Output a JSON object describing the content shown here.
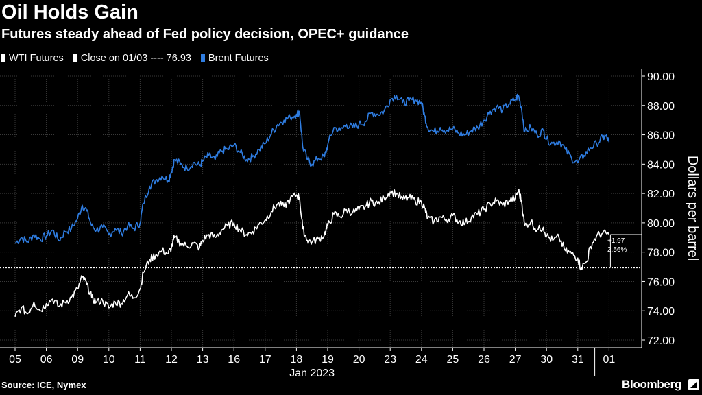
{
  "header": {
    "title": "Oil Holds Gain",
    "subtitle": "Futures steady ahead of Fed policy decision, OPEC+ guidance"
  },
  "legend": {
    "wti": "WTI Futures",
    "close": "Close on 01/03 ---- 76.93",
    "brent": "Brent Futures"
  },
  "footer": {
    "source": "Source: ICE, Nymex",
    "brand": "Bloomberg"
  },
  "colors": {
    "background": "#000000",
    "wti": "#ffffff",
    "brent": "#2f7de1",
    "grid": "#3a3a3a"
  },
  "chart_data": {
    "type": "line",
    "ylabel": "Dollars per barrel",
    "xlabel": "Jan 2023",
    "ylim": [
      72,
      90
    ],
    "y_ticks": [
      "72.00",
      "74.00",
      "76.00",
      "78.00",
      "80.00",
      "82.00",
      "84.00",
      "86.00",
      "88.00",
      "90.00"
    ],
    "categories": [
      "05",
      "06",
      "09",
      "10",
      "11",
      "12",
      "13",
      "16",
      "17",
      "18",
      "19",
      "20",
      "23",
      "24",
      "25",
      "26",
      "27",
      "30",
      "31",
      "01"
    ],
    "grid": true,
    "legend_position": "top-left",
    "reference_line": {
      "label": "Close on 01/03",
      "value": 76.93
    },
    "annotation": {
      "change": "+1.97",
      "percent": "2.56%"
    },
    "series": [
      {
        "name": "Brent Futures",
        "color": "#2f7de1",
        "values": [
          [
            0,
            78.6
          ],
          [
            0.2,
            79.0
          ],
          [
            0.4,
            78.7
          ],
          [
            0.6,
            79.2
          ],
          [
            0.8,
            78.9
          ],
          [
            1.0,
            79.1
          ],
          [
            1.2,
            79.5
          ],
          [
            1.4,
            78.8
          ],
          [
            1.6,
            79.4
          ],
          [
            1.8,
            79.6
          ],
          [
            2.0,
            80.3
          ],
          [
            2.15,
            81.2
          ],
          [
            2.3,
            80.8
          ],
          [
            2.45,
            79.8
          ],
          [
            2.6,
            79.5
          ],
          [
            2.8,
            79.7
          ],
          [
            3.0,
            79.2
          ],
          [
            3.2,
            79.6
          ],
          [
            3.4,
            79.3
          ],
          [
            3.6,
            79.8
          ],
          [
            3.8,
            79.6
          ],
          [
            4.0,
            80.0
          ],
          [
            4.1,
            81.3
          ],
          [
            4.3,
            82.5
          ],
          [
            4.5,
            82.9
          ],
          [
            4.7,
            83.2
          ],
          [
            4.9,
            82.9
          ],
          [
            5.0,
            83.5
          ],
          [
            5.1,
            84.3
          ],
          [
            5.3,
            84.0
          ],
          [
            5.5,
            83.7
          ],
          [
            5.7,
            84.1
          ],
          [
            5.9,
            83.9
          ],
          [
            6.0,
            84.2
          ],
          [
            6.2,
            84.6
          ],
          [
            6.4,
            84.3
          ],
          [
            6.6,
            84.9
          ],
          [
            6.8,
            85.0
          ],
          [
            7.0,
            85.3
          ],
          [
            7.2,
            84.8
          ],
          [
            7.4,
            84.3
          ],
          [
            7.6,
            84.5
          ],
          [
            7.8,
            85.0
          ],
          [
            8.0,
            85.4
          ],
          [
            8.2,
            86.1
          ],
          [
            8.4,
            86.7
          ],
          [
            8.6,
            87.0
          ],
          [
            8.8,
            87.2
          ],
          [
            9.0,
            87.4
          ],
          [
            9.1,
            87.6
          ],
          [
            9.2,
            85.2
          ],
          [
            9.35,
            84.3
          ],
          [
            9.5,
            84.0
          ],
          [
            9.7,
            84.4
          ],
          [
            9.9,
            84.5
          ],
          [
            10.0,
            85.3
          ],
          [
            10.2,
            86.5
          ],
          [
            10.4,
            86.3
          ],
          [
            10.6,
            86.7
          ],
          [
            10.8,
            86.5
          ],
          [
            11.0,
            86.7
          ],
          [
            11.2,
            86.9
          ],
          [
            11.4,
            87.5
          ],
          [
            11.6,
            87.4
          ],
          [
            11.8,
            87.6
          ],
          [
            12.0,
            88.4
          ],
          [
            12.2,
            88.7
          ],
          [
            12.4,
            88.2
          ],
          [
            12.6,
            88.3
          ],
          [
            12.8,
            88.4
          ],
          [
            13.0,
            88.2
          ],
          [
            13.1,
            87.3
          ],
          [
            13.2,
            86.5
          ],
          [
            13.4,
            86.2
          ],
          [
            13.6,
            86.5
          ],
          [
            13.8,
            86.3
          ],
          [
            14.0,
            86.4
          ],
          [
            14.2,
            86.1
          ],
          [
            14.4,
            86.0
          ],
          [
            14.6,
            86.3
          ],
          [
            14.8,
            86.5
          ],
          [
            15.0,
            87.0
          ],
          [
            15.2,
            87.6
          ],
          [
            15.4,
            87.9
          ],
          [
            15.6,
            87.7
          ],
          [
            15.8,
            88.1
          ],
          [
            16.0,
            88.4
          ],
          [
            16.1,
            88.7
          ],
          [
            16.2,
            87.8
          ],
          [
            16.3,
            86.2
          ],
          [
            16.5,
            86.5
          ],
          [
            16.7,
            86.0
          ],
          [
            16.9,
            86.3
          ],
          [
            17.0,
            85.7
          ],
          [
            17.2,
            85.4
          ],
          [
            17.4,
            85.6
          ],
          [
            17.6,
            85.0
          ],
          [
            17.8,
            84.4
          ],
          [
            18.0,
            84.1
          ],
          [
            18.2,
            84.6
          ],
          [
            18.4,
            85.1
          ],
          [
            18.6,
            85.4
          ],
          [
            18.8,
            85.8
          ],
          [
            18.9,
            85.9
          ],
          [
            19.0,
            85.5
          ]
        ]
      },
      {
        "name": "WTI Futures",
        "color": "#ffffff",
        "values": [
          [
            0,
            73.6
          ],
          [
            0.2,
            74.2
          ],
          [
            0.4,
            73.8
          ],
          [
            0.6,
            74.6
          ],
          [
            0.8,
            74.0
          ],
          [
            1.0,
            74.5
          ],
          [
            1.2,
            74.8
          ],
          [
            1.4,
            74.3
          ],
          [
            1.6,
            74.6
          ],
          [
            1.8,
            74.9
          ],
          [
            2.0,
            75.5
          ],
          [
            2.15,
            76.3
          ],
          [
            2.3,
            75.8
          ],
          [
            2.45,
            74.9
          ],
          [
            2.6,
            74.6
          ],
          [
            2.8,
            74.7
          ],
          [
            3.0,
            74.2
          ],
          [
            3.2,
            74.6
          ],
          [
            3.4,
            74.5
          ],
          [
            3.6,
            75.1
          ],
          [
            3.8,
            74.9
          ],
          [
            4.0,
            75.5
          ],
          [
            4.1,
            76.6
          ],
          [
            4.3,
            77.5
          ],
          [
            4.5,
            77.8
          ],
          [
            4.7,
            78.1
          ],
          [
            4.9,
            77.9
          ],
          [
            5.0,
            78.3
          ],
          [
            5.1,
            79.0
          ],
          [
            5.3,
            78.6
          ],
          [
            5.5,
            78.4
          ],
          [
            5.7,
            78.6
          ],
          [
            5.9,
            78.3
          ],
          [
            6.0,
            78.8
          ],
          [
            6.2,
            79.2
          ],
          [
            6.4,
            79.0
          ],
          [
            6.6,
            79.5
          ],
          [
            6.8,
            79.8
          ],
          [
            7.0,
            80.0
          ],
          [
            7.2,
            79.5
          ],
          [
            7.4,
            79.2
          ],
          [
            7.6,
            79.4
          ],
          [
            7.8,
            79.9
          ],
          [
            8.0,
            80.2
          ],
          [
            8.2,
            80.8
          ],
          [
            8.4,
            81.3
          ],
          [
            8.6,
            81.1
          ],
          [
            8.8,
            81.6
          ],
          [
            9.0,
            81.9
          ],
          [
            9.1,
            81.7
          ],
          [
            9.2,
            79.6
          ],
          [
            9.35,
            78.8
          ],
          [
            9.5,
            78.7
          ],
          [
            9.7,
            78.9
          ],
          [
            9.9,
            79.2
          ],
          [
            10.0,
            79.8
          ],
          [
            10.2,
            80.6
          ],
          [
            10.4,
            80.4
          ],
          [
            10.6,
            80.9
          ],
          [
            10.8,
            80.7
          ],
          [
            11.0,
            80.9
          ],
          [
            11.2,
            81.1
          ],
          [
            11.4,
            81.5
          ],
          [
            11.6,
            81.3
          ],
          [
            11.8,
            81.7
          ],
          [
            12.0,
            82.1
          ],
          [
            12.2,
            82.0
          ],
          [
            12.4,
            81.6
          ],
          [
            12.6,
            81.7
          ],
          [
            12.8,
            81.5
          ],
          [
            13.0,
            81.4
          ],
          [
            13.1,
            81.0
          ],
          [
            13.2,
            80.3
          ],
          [
            13.4,
            80.1
          ],
          [
            13.6,
            80.4
          ],
          [
            13.8,
            80.2
          ],
          [
            14.0,
            80.5
          ],
          [
            14.2,
            80.1
          ],
          [
            14.4,
            80.0
          ],
          [
            14.6,
            80.4
          ],
          [
            14.8,
            80.6
          ],
          [
            15.0,
            80.9
          ],
          [
            15.2,
            81.3
          ],
          [
            15.4,
            81.5
          ],
          [
            15.6,
            81.2
          ],
          [
            15.8,
            81.5
          ],
          [
            16.0,
            81.7
          ],
          [
            16.1,
            82.2
          ],
          [
            16.2,
            81.5
          ],
          [
            16.3,
            79.8
          ],
          [
            16.5,
            80.1
          ],
          [
            16.7,
            79.5
          ],
          [
            16.9,
            79.7
          ],
          [
            17.0,
            79.1
          ],
          [
            17.2,
            78.8
          ],
          [
            17.4,
            79.0
          ],
          [
            17.6,
            78.1
          ],
          [
            17.8,
            77.9
          ],
          [
            18.0,
            77.6
          ],
          [
            18.1,
            76.9
          ],
          [
            18.3,
            77.4
          ],
          [
            18.4,
            78.4
          ],
          [
            18.6,
            79.1
          ],
          [
            18.8,
            79.3
          ],
          [
            19.0,
            79.2
          ]
        ]
      }
    ]
  }
}
